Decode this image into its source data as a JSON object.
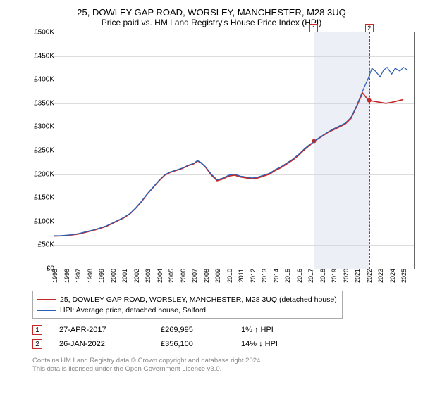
{
  "title_line1": "25, DOWLEY GAP ROAD, WORSLEY, MANCHESTER, M28 3UQ",
  "title_line2": "Price paid vs. HM Land Registry's House Price Index (HPI)",
  "chart": {
    "type": "line",
    "background_color": "#ffffff",
    "grid_color": "#dddddd",
    "border_color": "#666666",
    "x_year_min": 1995,
    "x_year_max": 2025.9,
    "x_tick_years": [
      1995,
      1996,
      1997,
      1998,
      1999,
      2000,
      2001,
      2002,
      2003,
      2004,
      2005,
      2006,
      2007,
      2008,
      2009,
      2010,
      2011,
      2012,
      2013,
      2014,
      2015,
      2016,
      2017,
      2018,
      2019,
      2020,
      2021,
      2022,
      2023,
      2024,
      2025
    ],
    "y_min": 0,
    "y_max": 500000,
    "y_tick_step": 50000,
    "y_tick_labels": [
      "£0",
      "£50K",
      "£100K",
      "£150K",
      "£200K",
      "£250K",
      "£300K",
      "£350K",
      "£400K",
      "£450K",
      "£500K"
    ],
    "y_tick_values": [
      0,
      50000,
      100000,
      150000,
      200000,
      250000,
      300000,
      350000,
      400000,
      450000,
      500000
    ],
    "shaded_band": {
      "start_year": 2017.32,
      "end_year": 2022.07,
      "fill": "rgba(200,210,225,0.35)"
    },
    "series": [
      {
        "name": "property",
        "label": "25, DOWLEY GAP ROAD, WORSLEY, MANCHESTER, M28 3UQ (detached house)",
        "color": "#c62828",
        "line_width": 1.6,
        "data": [
          [
            1995.0,
            69000
          ],
          [
            1995.5,
            69500
          ],
          [
            1996.0,
            70500
          ],
          [
            1996.5,
            71500
          ],
          [
            1997.0,
            73000
          ],
          [
            1997.5,
            76000
          ],
          [
            1998.0,
            79000
          ],
          [
            1998.5,
            82000
          ],
          [
            1999.0,
            86000
          ],
          [
            1999.5,
            90000
          ],
          [
            2000.0,
            96000
          ],
          [
            2000.5,
            102000
          ],
          [
            2001.0,
            108000
          ],
          [
            2001.5,
            116000
          ],
          [
            2002.0,
            128000
          ],
          [
            2002.5,
            142000
          ],
          [
            2003.0,
            158000
          ],
          [
            2003.5,
            172000
          ],
          [
            2004.0,
            186000
          ],
          [
            2004.5,
            198000
          ],
          [
            2005.0,
            204000
          ],
          [
            2005.5,
            208000
          ],
          [
            2006.0,
            212000
          ],
          [
            2006.5,
            218000
          ],
          [
            2007.0,
            222000
          ],
          [
            2007.3,
            228000
          ],
          [
            2007.6,
            224000
          ],
          [
            2008.0,
            215000
          ],
          [
            2008.5,
            198000
          ],
          [
            2009.0,
            186000
          ],
          [
            2009.5,
            190000
          ],
          [
            2010.0,
            196000
          ],
          [
            2010.5,
            198000
          ],
          [
            2011.0,
            194000
          ],
          [
            2011.5,
            192000
          ],
          [
            2012.0,
            190000
          ],
          [
            2012.5,
            192000
          ],
          [
            2013.0,
            196000
          ],
          [
            2013.5,
            200000
          ],
          [
            2014.0,
            208000
          ],
          [
            2014.5,
            214000
          ],
          [
            2015.0,
            222000
          ],
          [
            2015.5,
            230000
          ],
          [
            2016.0,
            240000
          ],
          [
            2016.5,
            252000
          ],
          [
            2017.0,
            262000
          ],
          [
            2017.32,
            269995
          ],
          [
            2017.5,
            272000
          ],
          [
            2018.0,
            280000
          ],
          [
            2018.5,
            288000
          ],
          [
            2019.0,
            294000
          ],
          [
            2019.5,
            300000
          ],
          [
            2020.0,
            306000
          ],
          [
            2020.5,
            318000
          ],
          [
            2021.0,
            344000
          ],
          [
            2021.5,
            372000
          ],
          [
            2022.0,
            356000
          ],
          [
            2022.07,
            356100
          ],
          [
            2022.5,
            354000
          ],
          [
            2023.0,
            352000
          ],
          [
            2023.5,
            350000
          ],
          [
            2024.0,
            352000
          ],
          [
            2024.5,
            355000
          ],
          [
            2025.0,
            358000
          ]
        ],
        "sale_points": [
          {
            "year": 2017.32,
            "price": 269995
          },
          {
            "year": 2022.07,
            "price": 356100
          }
        ],
        "marker_fill": "#c62828",
        "marker_radius": 3
      },
      {
        "name": "hpi",
        "label": "HPI: Average price, detached house, Salford",
        "color": "#2b5fb4",
        "line_width": 1.2,
        "data": [
          [
            1995.0,
            70000
          ],
          [
            1995.5,
            70000
          ],
          [
            1996.0,
            71000
          ],
          [
            1996.5,
            72000
          ],
          [
            1997.0,
            74000
          ],
          [
            1997.5,
            77000
          ],
          [
            1998.0,
            80000
          ],
          [
            1998.5,
            83000
          ],
          [
            1999.0,
            87000
          ],
          [
            1999.5,
            91000
          ],
          [
            2000.0,
            97000
          ],
          [
            2000.5,
            103000
          ],
          [
            2001.0,
            109000
          ],
          [
            2001.5,
            117000
          ],
          [
            2002.0,
            129000
          ],
          [
            2002.5,
            143000
          ],
          [
            2003.0,
            159000
          ],
          [
            2003.5,
            173000
          ],
          [
            2004.0,
            187000
          ],
          [
            2004.5,
            199000
          ],
          [
            2005.0,
            205000
          ],
          [
            2005.5,
            209000
          ],
          [
            2006.0,
            213000
          ],
          [
            2006.5,
            219000
          ],
          [
            2007.0,
            223000
          ],
          [
            2007.3,
            229000
          ],
          [
            2007.6,
            225000
          ],
          [
            2008.0,
            216000
          ],
          [
            2008.5,
            200000
          ],
          [
            2009.0,
            188000
          ],
          [
            2009.5,
            192000
          ],
          [
            2010.0,
            198000
          ],
          [
            2010.5,
            200000
          ],
          [
            2011.0,
            196000
          ],
          [
            2011.5,
            194000
          ],
          [
            2012.0,
            192000
          ],
          [
            2012.5,
            194000
          ],
          [
            2013.0,
            198000
          ],
          [
            2013.5,
            202000
          ],
          [
            2014.0,
            210000
          ],
          [
            2014.5,
            216000
          ],
          [
            2015.0,
            224000
          ],
          [
            2015.5,
            232000
          ],
          [
            2016.0,
            242000
          ],
          [
            2016.5,
            254000
          ],
          [
            2017.0,
            264000
          ],
          [
            2017.32,
            268000
          ],
          [
            2017.5,
            273000
          ],
          [
            2018.0,
            281000
          ],
          [
            2018.5,
            289000
          ],
          [
            2019.0,
            296000
          ],
          [
            2019.5,
            302000
          ],
          [
            2020.0,
            308000
          ],
          [
            2020.5,
            320000
          ],
          [
            2021.0,
            346000
          ],
          [
            2021.5,
            376000
          ],
          [
            2022.0,
            404000
          ],
          [
            2022.3,
            424000
          ],
          [
            2022.6,
            418000
          ],
          [
            2023.0,
            406000
          ],
          [
            2023.3,
            420000
          ],
          [
            2023.6,
            426000
          ],
          [
            2024.0,
            412000
          ],
          [
            2024.3,
            424000
          ],
          [
            2024.7,
            418000
          ],
          [
            2025.0,
            426000
          ],
          [
            2025.4,
            420000
          ]
        ]
      }
    ],
    "markers": [
      {
        "id": "1",
        "year": 2017.32
      },
      {
        "id": "2",
        "year": 2022.07
      }
    ],
    "marker_line_color": "#c62828",
    "marker_box_border": "#c62828"
  },
  "legend": {
    "border_color": "#aaaaaa",
    "items": [
      {
        "color": "#c62828",
        "label": "25, DOWLEY GAP ROAD, WORSLEY, MANCHESTER, M28 3UQ (detached house)"
      },
      {
        "color": "#2b5fb4",
        "label": "HPI: Average price, detached house, Salford"
      }
    ]
  },
  "sales": [
    {
      "id": "1",
      "date": "27-APR-2017",
      "price": "£269,995",
      "diff": "1% ↑ HPI"
    },
    {
      "id": "2",
      "date": "26-JAN-2022",
      "price": "£356,100",
      "diff": "14% ↓ HPI"
    }
  ],
  "footer_line1": "Contains HM Land Registry data © Crown copyright and database right 2024.",
  "footer_line2": "This data is licensed under the Open Government Licence v3.0.",
  "colors": {
    "footer_text": "#888888"
  }
}
